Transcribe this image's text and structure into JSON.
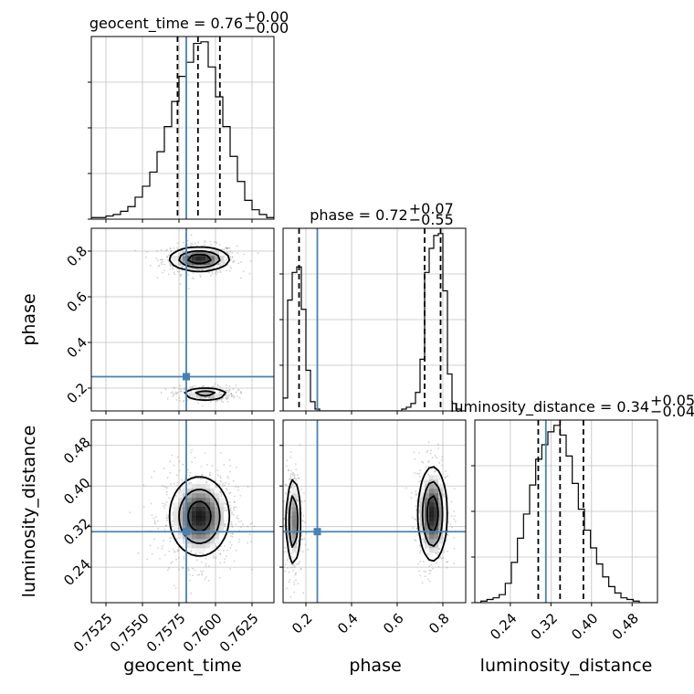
{
  "chart_data": {
    "type": "corner",
    "parameters": [
      "geocent_time",
      "phase",
      "luminosity_distance"
    ],
    "truth": {
      "geocent_time": 0.758,
      "phase": 0.25,
      "luminosity_distance": 0.31
    },
    "colors": {
      "truth": "#4682b4",
      "hist": "#000000",
      "grid": "#c0c0c0",
      "points": "#7f7f7f"
    },
    "grid": true,
    "titles": [
      {
        "param": "geocent_time",
        "name": "geocent_time",
        "value": "0.76",
        "plus": "+0.00",
        "minus": "−0.00"
      },
      {
        "param": "phase",
        "name": "phase",
        "value": "0.72",
        "plus": "+0.07",
        "minus": "−0.55"
      },
      {
        "param": "luminosity_distance",
        "name": "luminosity_distance",
        "value": "0.34",
        "plus": "+0.05",
        "minus": "−0.04"
      }
    ],
    "axes": {
      "geocent_time": {
        "range": [
          0.7515,
          0.764
        ],
        "ticks": [
          0.7525,
          0.755,
          0.7575,
          0.76,
          0.7625
        ],
        "tick_labels": [
          "0.7525",
          "0.7550",
          "0.7575",
          "0.7600",
          "0.7625"
        ]
      },
      "phase": {
        "range": [
          0.1,
          0.9
        ],
        "ticks": [
          0.2,
          0.4,
          0.6,
          0.8
        ],
        "tick_labels": [
          "0.2",
          "0.4",
          "0.6",
          "0.8"
        ]
      },
      "luminosity_distance": {
        "range": [
          0.17,
          0.53
        ],
        "ticks": [
          0.24,
          0.32,
          0.4,
          0.48
        ],
        "tick_labels": [
          "0.24",
          "0.32",
          "0.40",
          "0.48"
        ]
      }
    },
    "histograms": {
      "geocent_time": {
        "edges": [
          0.7515,
          0.752,
          0.7525,
          0.753,
          0.7535,
          0.754,
          0.7545,
          0.755,
          0.7555,
          0.756,
          0.7565,
          0.757,
          0.7575,
          0.758,
          0.7585,
          0.759,
          0.7595,
          0.76,
          0.7605,
          0.761,
          0.7615,
          0.762,
          0.7625,
          0.763,
          0.7635,
          0.764
        ],
        "counts": [
          1,
          1,
          2,
          3,
          5,
          8,
          14,
          21,
          30,
          43,
          59,
          75,
          91,
          100,
          112,
          113,
          97,
          78,
          59,
          40,
          24,
          12,
          6,
          3,
          1
        ],
        "quantiles": [
          0.7574,
          0.7588,
          0.7603
        ]
      },
      "phase": {
        "edges": [
          0.1,
          0.12,
          0.14,
          0.16,
          0.18,
          0.2,
          0.22,
          0.24,
          0.26,
          0.28,
          0.3,
          0.32,
          0.34,
          0.36,
          0.38,
          0.4,
          0.42,
          0.44,
          0.46,
          0.48,
          0.5,
          0.52,
          0.54,
          0.56,
          0.58,
          0.6,
          0.62,
          0.64,
          0.66,
          0.68,
          0.7,
          0.72,
          0.74,
          0.76,
          0.78,
          0.8,
          0.82,
          0.84,
          0.86,
          0.88,
          0.9
        ],
        "counts": [
          7,
          60,
          75,
          78,
          55,
          22,
          5,
          1,
          0,
          0,
          0,
          0,
          0,
          0,
          0,
          0,
          0,
          0,
          0,
          0,
          0,
          0,
          0,
          0,
          0,
          0,
          1,
          2,
          4,
          10,
          28,
          75,
          88,
          95,
          96,
          65,
          20,
          4,
          1,
          0
        ],
        "quantiles": [
          0.17,
          0.72,
          0.79
        ]
      },
      "luminosity_distance": {
        "edges": [
          0.17,
          0.182,
          0.194,
          0.206,
          0.218,
          0.23,
          0.242,
          0.254,
          0.266,
          0.278,
          0.29,
          0.302,
          0.314,
          0.326,
          0.338,
          0.35,
          0.362,
          0.374,
          0.386,
          0.398,
          0.41,
          0.422,
          0.434,
          0.446,
          0.458,
          0.47,
          0.482,
          0.494,
          0.506,
          0.518,
          0.53
        ],
        "counts": [
          0,
          1,
          2,
          3,
          5,
          12,
          25,
          40,
          55,
          73,
          89,
          98,
          106,
          110,
          104,
          91,
          74,
          58,
          45,
          34,
          24,
          16,
          10,
          6,
          3,
          2,
          1,
          0,
          0,
          0
        ],
        "quantiles": [
          0.295,
          0.338,
          0.384
        ]
      }
    },
    "pairs": [
      {
        "x": "geocent_time",
        "y": "phase",
        "modes": [
          {
            "cx": 0.7589,
            "cy": 0.765,
            "sx": 0.0011,
            "sy": 0.028,
            "w": 1.0
          },
          {
            "cx": 0.7593,
            "cy": 0.175,
            "sx": 0.0009,
            "sy": 0.016,
            "w": 0.6
          }
        ]
      },
      {
        "x": "geocent_time",
        "y": "luminosity_distance",
        "modes": [
          {
            "cx": 0.7589,
            "cy": 0.34,
            "sx": 0.0011,
            "sy": 0.042,
            "w": 1.0
          }
        ]
      },
      {
        "x": "phase",
        "y": "luminosity_distance",
        "modes": [
          {
            "cx": 0.145,
            "cy": 0.33,
            "sx": 0.017,
            "sy": 0.048,
            "w": 0.8
          },
          {
            "cx": 0.755,
            "cy": 0.345,
            "sx": 0.034,
            "sy": 0.05,
            "w": 1.0
          }
        ]
      }
    ],
    "contour_levels": [
      0.39,
      0.86,
      0.99
    ]
  }
}
